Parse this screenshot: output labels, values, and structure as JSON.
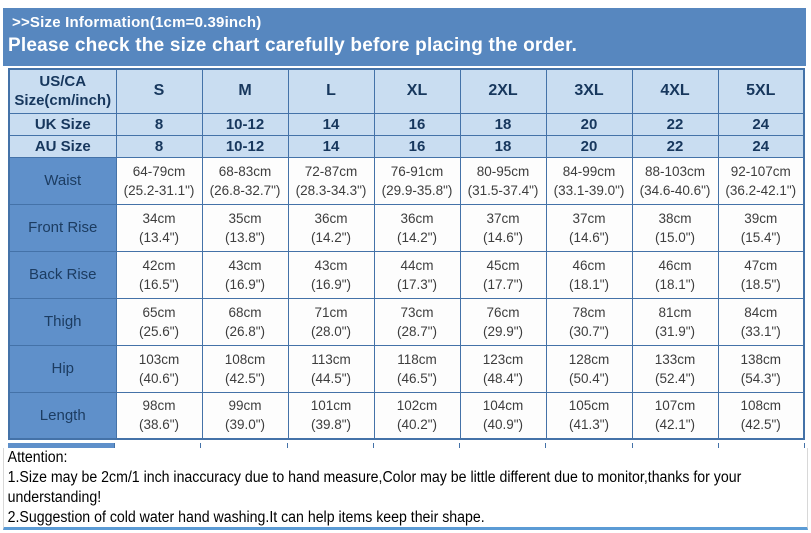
{
  "header": {
    "title": ">>Size Information(1cm=0.39inch)",
    "subtitle": "Please check the size chart carefully before placing the order."
  },
  "table": {
    "corner": {
      "line1": "US/CA",
      "line2": "Size(cm/inch)"
    },
    "size_headers": [
      "S",
      "M",
      "L",
      "XL",
      "2XL",
      "3XL",
      "4XL",
      "5XL"
    ],
    "size_rows": [
      {
        "label": "UK Size",
        "values": [
          "8",
          "10-12",
          "14",
          "16",
          "18",
          "20",
          "22",
          "24"
        ]
      },
      {
        "label": "AU Size",
        "values": [
          "8",
          "10-12",
          "14",
          "16",
          "18",
          "20",
          "22",
          "24"
        ]
      }
    ],
    "measure_rows": [
      {
        "label": "Waist",
        "values": [
          {
            "cm": "64-79cm",
            "in": "(25.2-31.1\")"
          },
          {
            "cm": "68-83cm",
            "in": "(26.8-32.7\")"
          },
          {
            "cm": "72-87cm",
            "in": "(28.3-34.3\")"
          },
          {
            "cm": "76-91cm",
            "in": "(29.9-35.8\")"
          },
          {
            "cm": "80-95cm",
            "in": "(31.5-37.4\")"
          },
          {
            "cm": "84-99cm",
            "in": "(33.1-39.0\")"
          },
          {
            "cm": "88-103cm",
            "in": "(34.6-40.6\")"
          },
          {
            "cm": "92-107cm",
            "in": "(36.2-42.1\")"
          }
        ]
      },
      {
        "label": "Front Rise",
        "values": [
          {
            "cm": "34cm",
            "in": "(13.4\")"
          },
          {
            "cm": "35cm",
            "in": "(13.8\")"
          },
          {
            "cm": "36cm",
            "in": "(14.2\")"
          },
          {
            "cm": "36cm",
            "in": "(14.2\")"
          },
          {
            "cm": "37cm",
            "in": "(14.6\")"
          },
          {
            "cm": "37cm",
            "in": "(14.6\")"
          },
          {
            "cm": "38cm",
            "in": "(15.0\")"
          },
          {
            "cm": "39cm",
            "in": "(15.4\")"
          }
        ]
      },
      {
        "label": "Back Rise",
        "values": [
          {
            "cm": "42cm",
            "in": "(16.5\")"
          },
          {
            "cm": "43cm",
            "in": "(16.9\")"
          },
          {
            "cm": "43cm",
            "in": "(16.9\")"
          },
          {
            "cm": "44cm",
            "in": "(17.3\")"
          },
          {
            "cm": "45cm",
            "in": "(17.7\")"
          },
          {
            "cm": "46cm",
            "in": "(18.1\")"
          },
          {
            "cm": "46cm",
            "in": "(18.1\")"
          },
          {
            "cm": "47cm",
            "in": "(18.5\")"
          }
        ]
      },
      {
        "label": "Thigh",
        "values": [
          {
            "cm": "65cm",
            "in": "(25.6\")"
          },
          {
            "cm": "68cm",
            "in": "(26.8\")"
          },
          {
            "cm": "71cm",
            "in": "(28.0\")"
          },
          {
            "cm": "73cm",
            "in": "(28.7\")"
          },
          {
            "cm": "76cm",
            "in": "(29.9\")"
          },
          {
            "cm": "78cm",
            "in": "(30.7\")"
          },
          {
            "cm": "81cm",
            "in": "(31.9\")"
          },
          {
            "cm": "84cm",
            "in": "(33.1\")"
          }
        ]
      },
      {
        "label": "Hip",
        "values": [
          {
            "cm": "103cm",
            "in": "(40.6\")"
          },
          {
            "cm": "108cm",
            "in": "(42.5\")"
          },
          {
            "cm": "113cm",
            "in": "(44.5\")"
          },
          {
            "cm": "118cm",
            "in": "(46.5\")"
          },
          {
            "cm": "123cm",
            "in": "(48.4\")"
          },
          {
            "cm": "128cm",
            "in": "(50.4\")"
          },
          {
            "cm": "133cm",
            "in": "(52.4\")"
          },
          {
            "cm": "138cm",
            "in": "(54.3\")"
          }
        ]
      },
      {
        "label": "Length",
        "values": [
          {
            "cm": "98cm",
            "in": "(38.6\")"
          },
          {
            "cm": "99cm",
            "in": "(39.0\")"
          },
          {
            "cm": "101cm",
            "in": "(39.8\")"
          },
          {
            "cm": "102cm",
            "in": "(40.2\")"
          },
          {
            "cm": "104cm",
            "in": "(40.9\")"
          },
          {
            "cm": "105cm",
            "in": "(41.3\")"
          },
          {
            "cm": "107cm",
            "in": "(42.1\")"
          },
          {
            "cm": "108cm",
            "in": "(42.5\")"
          }
        ]
      }
    ]
  },
  "notes": {
    "title": "Attention:",
    "lines": [
      "1.Size may be 2cm/1 inch inaccuracy due to hand measure,Color may be little different due to monitor,thanks for your understanding!",
      "2.Suggestion of cold water hand washing.It can help items keep their shape."
    ]
  },
  "colors": {
    "banner_bg": "#5787bf",
    "header_cell_bg": "#c9ddf1",
    "label_cell_bg": "#5f90ca",
    "border": "#4472a8",
    "header_text": "#17375d",
    "note_rule": "#5b9bd5"
  }
}
